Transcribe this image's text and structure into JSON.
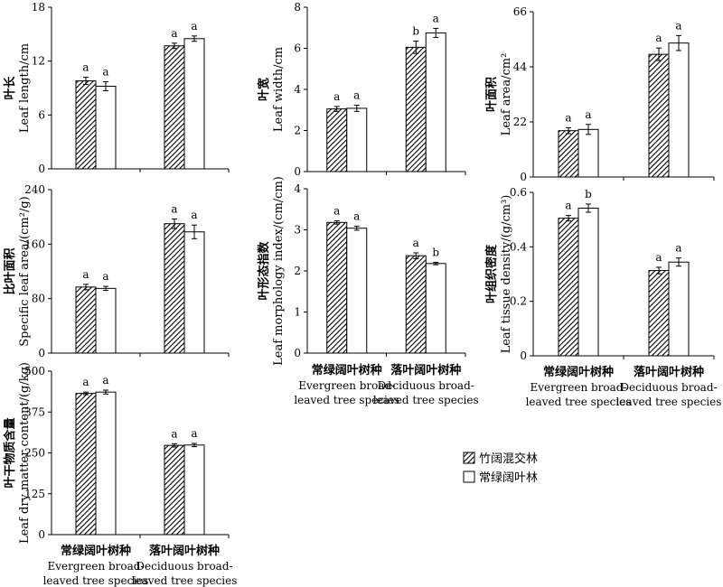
{
  "legend": [
    {
      "label": "竹阔混交林",
      "pattern": "hatch"
    },
    {
      "label": "常绿阔叶林",
      "pattern": "open"
    }
  ],
  "category_labels": [
    {
      "cn": "常绿阔叶树种",
      "en1": "Evergreen broad-",
      "en2": "leaved tree species"
    },
    {
      "cn": "落叶阔叶树种",
      "en1": "Deciduous broad-",
      "en2": "leaved tree species"
    }
  ],
  "chart_data": [
    {
      "type": "bar",
      "ylabel_cn": "叶长",
      "ylabel_en": "Leaf length/cm",
      "yticks": [
        "0",
        "6",
        "12",
        "18"
      ],
      "ylim": [
        0,
        18
      ],
      "categories": [
        "Evergreen broad-leaved tree species",
        "Deciduous broad-leaved tree species"
      ],
      "series": [
        {
          "name": "竹阔混交林",
          "values": [
            9.8,
            13.7
          ],
          "errors": [
            0.4,
            0.3
          ],
          "letters": [
            "a",
            "a"
          ]
        },
        {
          "name": "常绿阔叶林",
          "values": [
            9.2,
            14.5
          ],
          "errors": [
            0.5,
            0.3
          ],
          "letters": [
            "a",
            "a"
          ]
        }
      ]
    },
    {
      "type": "bar",
      "ylabel_cn": "叶宽",
      "ylabel_en": "Leaf width/cm",
      "yticks": [
        "0",
        "2",
        "4",
        "6",
        "8"
      ],
      "ylim": [
        0,
        8
      ],
      "categories": [
        "Evergreen broad-leaved tree species",
        "Deciduous broad-leaved tree species"
      ],
      "series": [
        {
          "name": "竹阔混交林",
          "values": [
            3.05,
            6.05
          ],
          "errors": [
            0.12,
            0.3
          ],
          "letters": [
            "a",
            "b"
          ]
        },
        {
          "name": "常绿阔叶林",
          "values": [
            3.08,
            6.75
          ],
          "errors": [
            0.15,
            0.22
          ],
          "letters": [
            "a",
            "a"
          ]
        }
      ]
    },
    {
      "type": "bar",
      "ylabel_cn": "叶面积",
      "ylabel_en": "Leaf area/cm²",
      "yticks": [
        "0",
        "22",
        "44",
        "66"
      ],
      "ylim": [
        0,
        66
      ],
      "categories": [
        "Evergreen broad-leaved tree species",
        "Deciduous broad-leaved tree species"
      ],
      "series": [
        {
          "name": "竹阔混交林",
          "values": [
            18.5,
            49.0
          ],
          "errors": [
            1.2,
            2.5
          ],
          "letters": [
            "a",
            "a"
          ]
        },
        {
          "name": "常绿阔叶林",
          "values": [
            19.0,
            53.5
          ],
          "errors": [
            2.0,
            3.0
          ],
          "letters": [
            "a",
            "a"
          ]
        }
      ]
    },
    {
      "type": "bar",
      "ylabel_cn": "比叶面积",
      "ylabel_en": "Specific leaf area/(cm²/g)",
      "yticks": [
        "0",
        "80",
        "160",
        "240"
      ],
      "ylim": [
        0,
        240
      ],
      "categories": [
        "Evergreen broad-leaved tree species",
        "Deciduous broad-leaved tree species"
      ],
      "series": [
        {
          "name": "竹阔混交林",
          "values": [
            97,
            190
          ],
          "errors": [
            4,
            7
          ],
          "letters": [
            "a",
            "a"
          ]
        },
        {
          "name": "常绿阔叶林",
          "values": [
            95,
            178
          ],
          "errors": [
            3,
            10
          ],
          "letters": [
            "a",
            "a"
          ]
        }
      ]
    },
    {
      "type": "bar",
      "ylabel_cn": "叶形态指数",
      "ylabel_en": "Leaf morphology index/(cm/cm)",
      "yticks": [
        "0",
        "1",
        "2",
        "3",
        "4"
      ],
      "ylim": [
        0,
        4
      ],
      "categories": [
        "Evergreen broad-leaved tree species",
        "Deciduous broad-leaved tree species"
      ],
      "series": [
        {
          "name": "竹阔混交林",
          "values": [
            3.18,
            2.37
          ],
          "errors": [
            0.04,
            0.07
          ],
          "letters": [
            "a",
            "a"
          ]
        },
        {
          "name": "常绿阔叶林",
          "values": [
            3.04,
            2.18
          ],
          "errors": [
            0.05,
            0.03
          ],
          "letters": [
            "a",
            "b"
          ]
        }
      ]
    },
    {
      "type": "bar",
      "ylabel_cn": "叶组织密度",
      "ylabel_en": "Leaf tissue density/(g/cm³)",
      "yticks": [
        "0",
        "0.2",
        "0.4",
        "0.6"
      ],
      "ylim": [
        0,
        0.6
      ],
      "categories": [
        "Evergreen broad-leaved tree species",
        "Deciduous broad-leaved tree species"
      ],
      "series": [
        {
          "name": "竹阔混交林",
          "values": [
            0.505,
            0.313
          ],
          "errors": [
            0.01,
            0.012
          ],
          "letters": [
            "a",
            "a"
          ]
        },
        {
          "name": "常绿阔叶林",
          "values": [
            0.542,
            0.344
          ],
          "errors": [
            0.015,
            0.015
          ],
          "letters": [
            "b",
            "a"
          ]
        }
      ]
    },
    {
      "type": "bar",
      "ylabel_cn": "叶干物质含量",
      "ylabel_en": "Leaf dry matter content/(g/kg)",
      "yticks": [
        "0",
        "125",
        "250",
        "375",
        "500"
      ],
      "ylim": [
        0,
        500
      ],
      "categories": [
        "Evergreen broad-leaved tree species",
        "Deciduous broad-leaved tree species"
      ],
      "series": [
        {
          "name": "竹阔混交林",
          "values": [
            432,
            273
          ],
          "errors": [
            4,
            5
          ],
          "letters": [
            "a",
            "a"
          ]
        },
        {
          "name": "常绿阔叶林",
          "values": [
            436,
            274
          ],
          "errors": [
            6,
            5
          ],
          "letters": [
            "a",
            "a"
          ]
        }
      ]
    }
  ]
}
